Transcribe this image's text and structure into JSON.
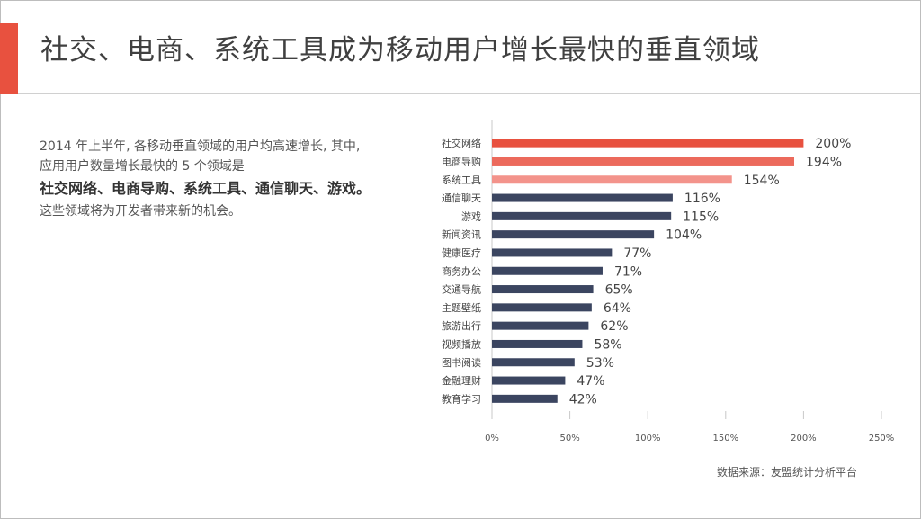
{
  "title": "社交、电商、系统工具成为移动用户增长最快的垂直领域",
  "description": {
    "line1": "2014 年上半年, 各移动垂直领域的用户均高速增长, 其中,",
    "line2": "应用用户数量增长最快的 5 个领域是",
    "highlight": "社交网络、电商导购、系统工具、通信聊天、游戏。",
    "line3": "这些领域将为开发者带来新的机会。"
  },
  "source": "数据来源：友盟统计分析平台",
  "colors": {
    "accent": "#e8513f",
    "bar_red": "#e8513f",
    "bar_pink": "#f3938b",
    "bar_navy": "#3b4560"
  },
  "chart_data": {
    "type": "bar",
    "orientation": "horizontal",
    "categories": [
      "社交网络",
      "电商导购",
      "系统工具",
      "通信聊天",
      "游戏",
      "新闻资讯",
      "健康医疗",
      "商务办公",
      "交通导航",
      "主题壁纸",
      "旅游出行",
      "视频播放",
      "图书阅读",
      "金融理财",
      "教育学习"
    ],
    "values": [
      200,
      194,
      154,
      116,
      115,
      104,
      77,
      71,
      65,
      64,
      62,
      58,
      53,
      47,
      42
    ],
    "value_labels": [
      "200%",
      "194%",
      "154%",
      "116%",
      "115%",
      "104%",
      "77%",
      "71%",
      "65%",
      "64%",
      "62%",
      "58%",
      "53%",
      "47%",
      "42%"
    ],
    "bar_colors": [
      "#e8513f",
      "#ec6a5c",
      "#f3938b",
      "#3b4560",
      "#3b4560",
      "#3b4560",
      "#3b4560",
      "#3b4560",
      "#3b4560",
      "#3b4560",
      "#3b4560",
      "#3b4560",
      "#3b4560",
      "#3b4560",
      "#3b4560"
    ],
    "xlim": [
      0,
      250
    ],
    "xticks": [
      0,
      50,
      100,
      150,
      200,
      250
    ],
    "xtick_labels": [
      "0%",
      "50%",
      "100%",
      "150%",
      "200%",
      "250%"
    ],
    "grid": false,
    "legend": "none"
  }
}
